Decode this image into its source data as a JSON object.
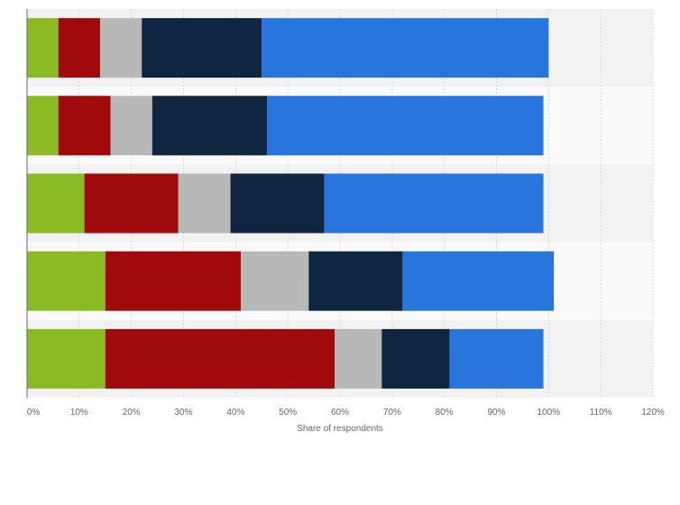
{
  "chart_data": {
    "type": "bar",
    "orientation": "horizontal",
    "stacked": true,
    "title": "",
    "xlabel": "Share of respondents",
    "ylabel": "",
    "xlim": [
      0,
      120
    ],
    "xticks": [
      "0%",
      "10%",
      "20%",
      "30%",
      "40%",
      "50%",
      "60%",
      "70%",
      "80%",
      "90%",
      "100%",
      "110%",
      "120%"
    ],
    "categories": [
      "",
      "",
      "",
      "",
      ""
    ],
    "grid": "vertical",
    "legend": "none",
    "series": [
      {
        "color": "#8bbb24",
        "values": [
          6,
          6,
          11,
          15,
          15
        ]
      },
      {
        "color": "#a10a0a",
        "values": [
          8,
          10,
          18,
          26,
          44
        ]
      },
      {
        "color": "#b8b8b8",
        "values": [
          8,
          8,
          10,
          13,
          9
        ]
      },
      {
        "color": "#10253f",
        "values": [
          23,
          22,
          18,
          18,
          13
        ]
      },
      {
        "color": "#2876dd",
        "values": [
          55,
          53,
          42,
          29,
          18
        ]
      }
    ]
  }
}
